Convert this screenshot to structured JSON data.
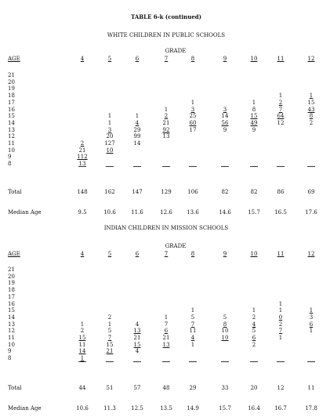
{
  "table_title": "TABLE 6-k (continued)",
  "sections": [
    {
      "title": "WHITE CHILDREN IN PUBLIC SCHOOLS",
      "grade_label": "GRADE",
      "age_label": "AGE",
      "grades": [
        "4",
        "5",
        "6",
        "7",
        "8",
        "9",
        "10",
        "11",
        "12"
      ],
      "ages": [
        "21",
        "20",
        "19",
        "18",
        "17",
        "16",
        "15",
        "14",
        "13",
        "12",
        "11",
        "10",
        "9",
        "8"
      ],
      "cells": [
        [
          {
            "v": "2",
            "u": true
          },
          {
            "v": "21"
          },
          {
            "v": "112",
            "u": true
          },
          {
            "v": "13",
            "u": true
          }
        ],
        [
          {
            "v": "1"
          },
          {
            "v": "1"
          },
          {
            "v": "3",
            "u": true
          },
          {
            "v": "20"
          },
          {
            "v": "127"
          },
          {
            "v": "10",
            "u": true
          }
        ],
        [
          {
            "v": "1"
          },
          {
            "v": "4",
            "u": true
          },
          {
            "v": "29"
          },
          {
            "v": "99"
          },
          {
            "v": "14"
          }
        ],
        [
          {
            "v": "1"
          },
          {
            "v": "2",
            "u": true
          },
          {
            "v": "21"
          },
          {
            "v": "92",
            "u": true
          },
          {
            "v": "13"
          }
        ],
        [
          {
            "v": "1"
          },
          {
            "v": "3",
            "u": true
          },
          {
            "v": "25"
          },
          {
            "v": "60",
            "u": true
          },
          {
            "v": "17"
          }
        ],
        [
          {
            "v": "3",
            "u": true
          },
          {
            "v": "14"
          },
          {
            "v": "56",
            "u": true
          },
          {
            "v": "9"
          }
        ],
        [
          {
            "v": "1"
          },
          {
            "v": "8"
          },
          {
            "v": "15",
            "u": true
          },
          {
            "v": "49",
            "u": true
          },
          {
            "v": "9"
          }
        ],
        [
          {
            "v": "1"
          },
          {
            "v": "2",
            "u": true
          },
          {
            "v": "7",
            "u": true
          },
          {
            "v": "64",
            "u": true
          },
          {
            "v": "12"
          }
        ],
        [
          {
            "v": "1",
            "u": true
          },
          {
            "v": "15"
          },
          {
            "v": "43",
            "u": true
          },
          {
            "v": "8",
            "u": true
          },
          {
            "v": "2"
          }
        ]
      ],
      "total_label": "Total",
      "totals": [
        "148",
        "162",
        "147",
        "129",
        "106",
        "82",
        "82",
        "86",
        "69"
      ],
      "median_label": "Median Age",
      "medians": [
        "9.5",
        "10.6",
        "11.6",
        "12.6",
        "13.6",
        "14.6",
        "15.7",
        "16.5",
        "17.6"
      ]
    },
    {
      "title": "INDIAN CHILDREN IN MISSION SCHOOLS",
      "grade_label": "GRADE",
      "age_label": "AGE",
      "grades": [
        "4",
        "5",
        "6",
        "7",
        "8",
        "9",
        "10",
        "11",
        "12"
      ],
      "ages": [
        "21",
        "20",
        "19",
        "18",
        "17",
        "16",
        "15",
        "14",
        "13",
        "12",
        "11",
        "10",
        "9",
        "8"
      ],
      "cells": [
        [
          {
            "v": "1"
          },
          {
            "v": "2"
          },
          {
            "v": "15",
            "u": true
          },
          {
            "v": "11"
          },
          {
            "v": "14",
            "u": true
          },
          {
            "v": "1",
            "u": true
          }
        ],
        [
          {
            "v": "2"
          },
          {
            "v": "1"
          },
          {
            "v": "5"
          },
          {
            "v": "7",
            "u": true
          },
          {
            "v": "15"
          },
          {
            "v": "21",
            "u": true
          }
        ],
        [
          {
            "v": "4"
          },
          {
            "v": "13",
            "u": true
          },
          {
            "v": "21"
          },
          {
            "v": "15",
            "u": true
          },
          {
            "v": "4"
          }
        ],
        [
          {
            "v": "1"
          },
          {
            "v": "7"
          },
          {
            "v": "6",
            "u": true
          },
          {
            "v": "21"
          },
          {
            "v": "13",
            "u": true
          }
        ],
        [
          {
            "v": "1"
          },
          {
            "v": "5"
          },
          {
            "v": "7",
            "u": true
          },
          {
            "v": "11"
          },
          {
            "v": "4",
            "u": true
          },
          {
            "v": "1"
          }
        ],
        [
          {
            "v": "5"
          },
          {
            "v": "8",
            "u": true
          },
          {
            "v": "10"
          },
          {
            "v": "10",
            "u": true
          }
        ],
        [
          {
            "v": "1"
          },
          {
            "v": "2"
          },
          {
            "v": "4",
            "u": true
          },
          {
            "v": "5"
          },
          {
            "v": "6",
            "u": true
          },
          {
            "v": "2"
          }
        ],
        [
          {
            "v": "1"
          },
          {
            "v": "1"
          },
          {
            "v": "0",
            "u": true
          },
          {
            "v": "2"
          },
          {
            "v": "7",
            "u": true
          },
          {
            "v": "1"
          }
        ],
        [
          {
            "v": "1",
            "u": true
          },
          {
            "v": "3"
          },
          {
            "v": "6",
            "u": true
          },
          {
            "v": "1"
          }
        ]
      ],
      "total_label": "Total",
      "totals": [
        "44",
        "51",
        "57",
        "48",
        "29",
        "33",
        "20",
        "12",
        "11"
      ],
      "median_label": "Median Age",
      "medians": [
        "10.6",
        "11.3",
        "12.5",
        "13.5",
        "14.9",
        "15.7",
        "16.4",
        "16.7",
        "17.8"
      ]
    }
  ]
}
